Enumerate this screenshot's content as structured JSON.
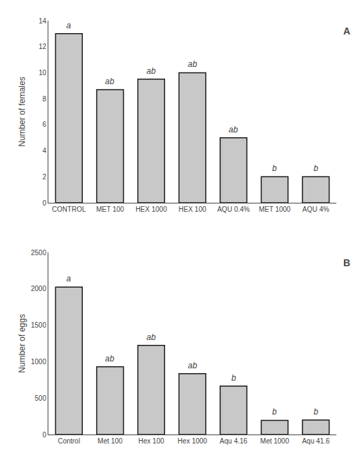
{
  "chart_data": [
    {
      "type": "bar",
      "title": "A",
      "categories": [
        "CONTROL",
        "MET 100",
        "HEX 1000",
        "HEX 100",
        "AQU 0.4%",
        "MET 1000",
        "AQU 4%"
      ],
      "values": [
        13.0,
        8.7,
        9.5,
        10.0,
        5.0,
        2.0,
        2.0
      ],
      "annotations": [
        {
          "x": "CONTROL",
          "text": "a"
        },
        {
          "x": "MET 100",
          "text": "ab"
        },
        {
          "x": "HEX 1000",
          "text": "ab"
        },
        {
          "x": "HEX 100",
          "text": "ab"
        },
        {
          "x": "AQU 0.4%",
          "text": "ab"
        },
        {
          "x": "MET 1000",
          "text": "b"
        },
        {
          "x": "AQU 4%",
          "text": "b"
        }
      ],
      "ylabel": "Number of females",
      "ylim": [
        0,
        14
      ],
      "yticks": [
        0,
        2,
        4,
        6,
        8,
        10,
        12,
        14
      ],
      "color": "#c8c8c8",
      "grid": false
    },
    {
      "type": "bar",
      "title": "B",
      "categories": [
        "Control",
        "Met 100",
        "Hex 100",
        "Hex 1000",
        "Aqu 4.16",
        "Met 1000",
        "Aqu 41.6"
      ],
      "values": [
        2025,
        930,
        1225,
        835,
        665,
        195,
        200
      ],
      "annotations": [
        {
          "x": "Control",
          "text": "a"
        },
        {
          "x": "Met 100",
          "text": "ab"
        },
        {
          "x": "Hex 100",
          "text": "ab"
        },
        {
          "x": "Hex 1000",
          "text": "ab"
        },
        {
          "x": "Aqu 4.16",
          "text": "b"
        },
        {
          "x": "Met 1000",
          "text": "b"
        },
        {
          "x": "Aqu 41.6",
          "text": "b"
        }
      ],
      "ylabel": "Number of eggs",
      "ylim": [
        0,
        2500
      ],
      "yticks": [
        0,
        500,
        1000,
        1500,
        2000,
        2500
      ],
      "color": "#c8c8c8",
      "grid": false
    }
  ]
}
